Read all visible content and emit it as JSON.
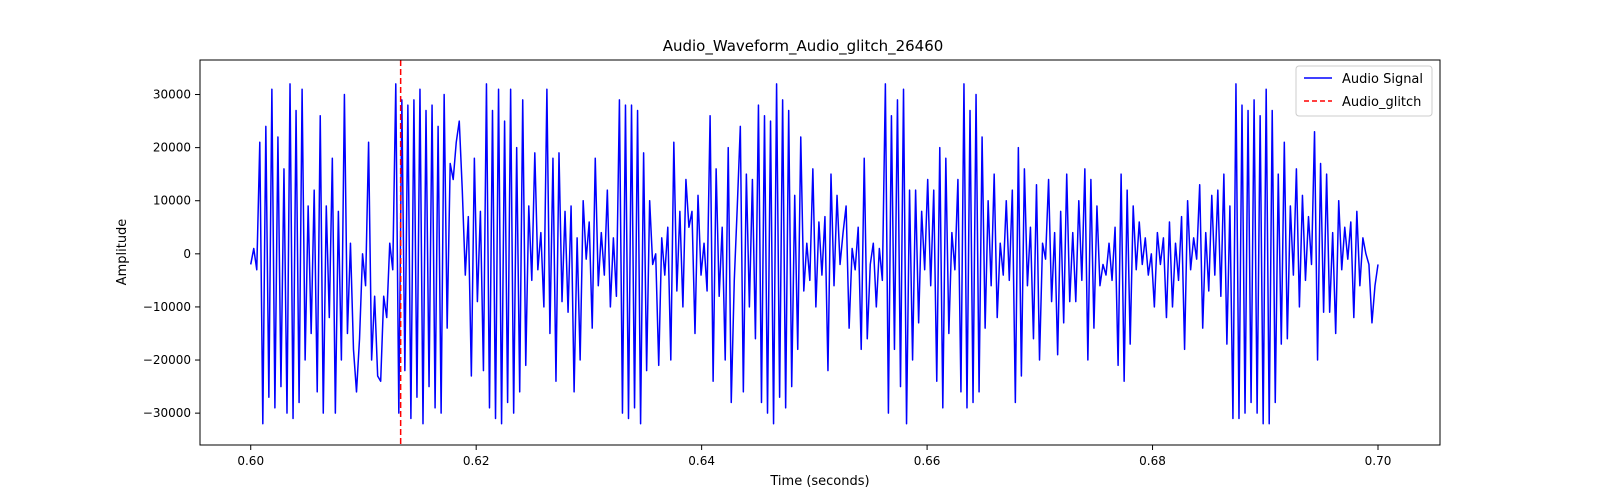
{
  "chart_data": {
    "type": "line",
    "title": "Audio_Waveform_Audio_glitch_26460",
    "xlabel": "Time (seconds)",
    "ylabel": "Amplitude",
    "xlim": [
      0.5955,
      0.7055
    ],
    "ylim": [
      -36000,
      36500
    ],
    "x_ticks": [
      0.6,
      0.62,
      0.64,
      0.66,
      0.68,
      0.7
    ],
    "x_tick_labels": [
      "0.60",
      "0.62",
      "0.64",
      "0.66",
      "0.68",
      "0.70"
    ],
    "y_ticks": [
      -30000,
      -20000,
      -10000,
      0,
      10000,
      20000,
      30000
    ],
    "y_tick_labels": [
      "−30000",
      "−20000",
      "−10000",
      "0",
      "10000",
      "20000",
      "30000"
    ],
    "grid": false,
    "legend_position": "top-right",
    "series": [
      {
        "name": "Audio Signal",
        "color": "#0000ff",
        "style": "solid",
        "x_start": 0.6,
        "x_end": 0.7,
        "y": [
          -2000,
          1000,
          -3000,
          21000,
          -32000,
          24000,
          -27000,
          31000,
          -29000,
          22000,
          -25000,
          16000,
          -30000,
          32000,
          -31000,
          27000,
          -28000,
          31000,
          -20000,
          9000,
          -15000,
          12000,
          -26000,
          26000,
          -30000,
          9000,
          -12000,
          18000,
          -30000,
          8000,
          -20000,
          30000,
          -15000,
          2000,
          -18000,
          -26000,
          -16000,
          0,
          -6000,
          21000,
          -20000,
          -8000,
          -23000,
          -24000,
          -8000,
          -12000,
          2000,
          -3000,
          32000,
          -30000,
          29000,
          -22000,
          28000,
          -31000,
          29000,
          -27000,
          31000,
          -32000,
          27000,
          -25000,
          28000,
          -29000,
          24000,
          -30000,
          30000,
          -14000,
          17000,
          14000,
          21000,
          25000,
          12000,
          -4000,
          7000,
          -23000,
          18000,
          -9000,
          8000,
          -22000,
          32000,
          -29000,
          27000,
          -31000,
          31000,
          -32000,
          25000,
          -28000,
          31000,
          -30000,
          20000,
          -26000,
          29000,
          -21000,
          9000,
          -5000,
          19000,
          -3000,
          4000,
          -10000,
          31000,
          -15000,
          18000,
          -24000,
          19000,
          -9000,
          8000,
          -11000,
          9000,
          -26000,
          3000,
          -20000,
          10000,
          -1000,
          6000,
          -14000,
          18000,
          -6000,
          4000,
          -4000,
          12000,
          -10000,
          3000,
          -8000,
          29000,
          -30000,
          28000,
          -31000,
          28000,
          -29000,
          27000,
          -32000,
          19000,
          -22000,
          10000,
          -2000,
          0,
          -21000,
          3000,
          -4000,
          5000,
          -20000,
          21000,
          -7000,
          8000,
          -10000,
          14000,
          5000,
          8000,
          -15000,
          11000,
          -4000,
          2000,
          -7000,
          26000,
          -24000,
          16000,
          -8000,
          5000,
          -20000,
          20000,
          -28000,
          -5000,
          9000,
          24000,
          -26000,
          15000,
          -10000,
          14000,
          -16000,
          28000,
          -28000,
          26000,
          -30000,
          25000,
          -32000,
          32000,
          -27000,
          29000,
          -29000,
          27000,
          -25000,
          11000,
          -18000,
          22000,
          -7000,
          2000,
          -5000,
          16000,
          -10000,
          6000,
          -4000,
          7000,
          -22000,
          15000,
          -6000,
          11000,
          -2000,
          4000,
          9000,
          -14000,
          1000,
          -3000,
          5000,
          -18000,
          18000,
          -16000,
          -2000,
          2000,
          -10000,
          1000,
          -5000,
          32000,
          -30000,
          26000,
          -18000,
          29000,
          -25000,
          31000,
          -32000,
          12000,
          -20000,
          12000,
          -13000,
          8000,
          -3000,
          14000,
          -6000,
          12000,
          -24000,
          20000,
          -29000,
          18000,
          -15000,
          4000,
          -3000,
          14000,
          -26000,
          32000,
          -29000,
          27000,
          -28000,
          30000,
          -26000,
          22000,
          -14000,
          10000,
          -6000,
          15000,
          -12000,
          2000,
          -4000,
          10000,
          -5000,
          12000,
          -28000,
          20000,
          -23000,
          16000,
          -6000,
          5000,
          -16000,
          13000,
          -20000,
          2000,
          -1000,
          14000,
          -9000,
          4000,
          -19000,
          8000,
          -13000,
          15000,
          -9000,
          4000,
          -9000,
          10000,
          -5000,
          16000,
          -20000,
          14000,
          -14000,
          9000,
          -6000,
          -2000,
          -4000,
          2000,
          -5000,
          5000,
          -21000,
          15000,
          -24000,
          12000,
          -17000,
          9000,
          -3000,
          6000,
          -2000,
          3000,
          -4000,
          0,
          -10000,
          4000,
          -2000,
          3000,
          -12000,
          6000,
          -10000,
          2000,
          -5000,
          7000,
          -18000,
          10000,
          -3000,
          3000,
          -1000,
          13000,
          -14000,
          4000,
          -7000,
          11000,
          -4000,
          12000,
          -8000,
          15000,
          -17000,
          9000,
          -31000,
          32000,
          -31000,
          28000,
          -30000,
          27000,
          -28000,
          29000,
          -30000,
          26000,
          -32000,
          31000,
          -32000,
          27000,
          -28000,
          15000,
          -17000,
          21000,
          -16000,
          9000,
          -4000,
          16000,
          -10000,
          11000,
          -5000,
          7000,
          -2000,
          23000,
          -20000,
          17000,
          -11000,
          15000,
          -11000,
          4000,
          -15000,
          10000,
          -3000,
          5000,
          -1000,
          6000,
          -12000,
          8000,
          -6000,
          3000,
          0,
          -2000,
          -13000,
          -6000,
          -2000
        ]
      },
      {
        "name": "Audio_glitch",
        "color": "#ff0000",
        "style": "dashed",
        "x": 0.6133
      }
    ]
  }
}
